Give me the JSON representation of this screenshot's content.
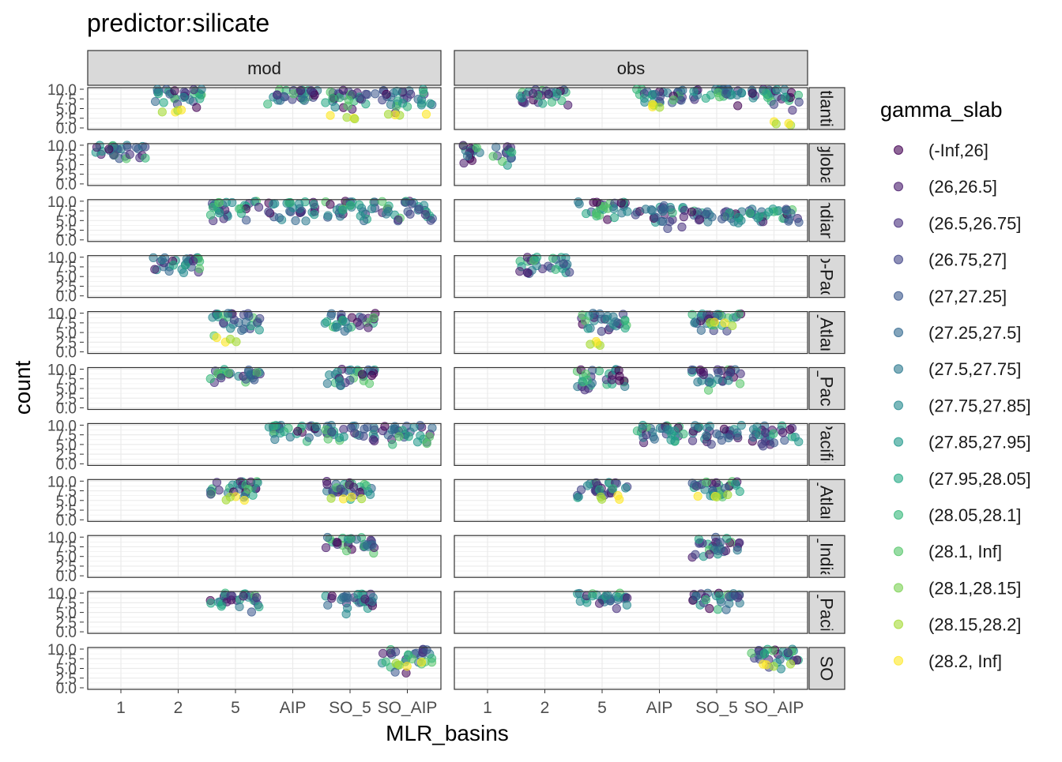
{
  "chart_data": {
    "type": "scatter",
    "title": "predictor:silicate",
    "xlabel": "MLR_basins",
    "ylabel": "count",
    "x_categories": [
      "1",
      "2",
      "5",
      "AIP",
      "SO_5",
      "SO_AIP"
    ],
    "y_ticks": [
      "0.0",
      "2.5",
      "5.0",
      "7.5",
      "10.0"
    ],
    "ylim": [
      0,
      10
    ],
    "grid": true,
    "columns": [
      "mod",
      "obs"
    ],
    "rows": [
      "tlanti",
      "globa",
      "ndian",
      "o-Pac",
      "_Atlan",
      "_Paci",
      "Pacific",
      "_Atlan",
      "_India",
      "_Pacif",
      "SO"
    ],
    "legend": {
      "title": "gamma_slab",
      "placement": "right",
      "entries": [
        {
          "label": "(-Inf,26]",
          "color": "#440154"
        },
        {
          "label": "(26,26.5]",
          "color": "#481a6c"
        },
        {
          "label": "(26.5,26.75]",
          "color": "#472f7d"
        },
        {
          "label": "(26.75,27]",
          "color": "#414487"
        },
        {
          "label": "(27,27.25]",
          "color": "#39568c"
        },
        {
          "label": "(27.25,27.5]",
          "color": "#31688e"
        },
        {
          "label": "(27.5,27.75]",
          "color": "#2a788e"
        },
        {
          "label": "(27.75,27.85]",
          "color": "#23888e"
        },
        {
          "label": "(27.85,27.95]",
          "color": "#1f988b"
        },
        {
          "label": "(27.95,28.05]",
          "color": "#22a884"
        },
        {
          "label": "(28.05,28.1]",
          "color": "#35b779"
        },
        {
          "label": "(28.1, Inf]",
          "color": "#54c568"
        },
        {
          "label": "(28.1,28.15]",
          "color": "#7ad151"
        },
        {
          "label": "(28.15,28.2]",
          "color": "#a5db36"
        },
        {
          "label": "(28.2, Inf]",
          "color": "#fde725"
        }
      ]
    },
    "panels": [
      {
        "row": 0,
        "col": "mod",
        "groups": [
          {
            "x": "2",
            "y": [
              5,
              10
            ]
          },
          {
            "x": "AIP",
            "y": [
              5,
              10
            ]
          },
          {
            "x": "SO_5",
            "y": [
              4,
              10
            ]
          },
          {
            "x": "SO_AIP",
            "y": [
              3.5,
              10
            ]
          }
        ],
        "yellow": [
          {
            "x": "2",
            "y": 4
          },
          {
            "x": "SO_5",
            "y": 3
          },
          {
            "x": "SO_AIP",
            "y": 4
          }
        ]
      },
      {
        "row": 0,
        "col": "obs",
        "groups": [
          {
            "x": "2",
            "y": [
              5,
              10
            ]
          },
          {
            "x": "AIP",
            "y": [
              5,
              10
            ]
          },
          {
            "x": "SO_5",
            "y": [
              5,
              10
            ]
          },
          {
            "x": "SO_AIP",
            "y": [
              4,
              10
            ]
          }
        ],
        "yellow": [
          {
            "x": "AIP",
            "y": 6
          },
          {
            "x": "SO_AIP",
            "y": 1
          }
        ]
      },
      {
        "row": 1,
        "col": "mod",
        "groups": [
          {
            "x": "1",
            "y": [
              5,
              10
            ]
          }
        ]
      },
      {
        "row": 1,
        "col": "obs",
        "groups": [
          {
            "x": "1",
            "y": [
              4,
              10
            ]
          }
        ]
      },
      {
        "row": 2,
        "col": "mod",
        "groups": [
          {
            "x": "5",
            "y": [
              4,
              10
            ]
          },
          {
            "x": "AIP",
            "y": [
              4,
              10
            ]
          },
          {
            "x": "SO_5",
            "y": [
              4,
              10
            ]
          },
          {
            "x": "SO_AIP",
            "y": [
              4,
              10
            ]
          }
        ]
      },
      {
        "row": 2,
        "col": "obs",
        "groups": [
          {
            "x": "5",
            "y": [
              4.5,
              10
            ]
          },
          {
            "x": "AIP",
            "y": [
              2.5,
              9
            ]
          },
          {
            "x": "SO_5",
            "y": [
              4,
              7.5
            ]
          },
          {
            "x": "SO_AIP",
            "y": [
              4,
              8
            ]
          }
        ]
      },
      {
        "row": 3,
        "col": "mod",
        "groups": [
          {
            "x": "2",
            "y": [
              5,
              10
            ]
          }
        ]
      },
      {
        "row": 3,
        "col": "obs",
        "groups": [
          {
            "x": "2",
            "y": [
              5,
              10
            ]
          }
        ]
      },
      {
        "row": 4,
        "col": "mod",
        "groups": [
          {
            "x": "5",
            "y": [
              4,
              10
            ]
          },
          {
            "x": "SO_5",
            "y": [
              5,
              10
            ]
          }
        ],
        "yellow": [
          {
            "x": "5",
            "y": 3
          }
        ]
      },
      {
        "row": 4,
        "col": "obs",
        "groups": [
          {
            "x": "5",
            "y": [
              5,
              10
            ]
          },
          {
            "x": "SO_5",
            "y": [
              5,
              10
            ]
          }
        ],
        "yellow": [
          {
            "x": "5",
            "y": 2
          },
          {
            "x": "SO_5",
            "y": 7
          }
        ]
      },
      {
        "row": 5,
        "col": "mod",
        "groups": [
          {
            "x": "5",
            "y": [
              5,
              10
            ]
          },
          {
            "x": "SO_5",
            "y": [
              5,
              10
            ]
          }
        ]
      },
      {
        "row": 5,
        "col": "obs",
        "groups": [
          {
            "x": "5",
            "y": [
              4,
              10
            ]
          },
          {
            "x": "SO_5",
            "y": [
              4,
              10
            ]
          }
        ]
      },
      {
        "row": 6,
        "col": "mod",
        "groups": [
          {
            "x": "AIP",
            "y": [
              5,
              10
            ]
          },
          {
            "x": "SO_5",
            "y": [
              4,
              10
            ]
          },
          {
            "x": "SO_AIP",
            "y": [
              4,
              10
            ]
          }
        ]
      },
      {
        "row": 6,
        "col": "obs",
        "groups": [
          {
            "x": "AIP",
            "y": [
              4,
              10
            ]
          },
          {
            "x": "SO_5",
            "y": [
              4,
              10
            ]
          },
          {
            "x": "SO_AIP",
            "y": [
              4,
              10
            ]
          }
        ]
      },
      {
        "row": 7,
        "col": "mod",
        "groups": [
          {
            "x": "5",
            "y": [
              5,
              10
            ]
          },
          {
            "x": "SO_5",
            "y": [
              5,
              10
            ]
          }
        ],
        "yellow": [
          {
            "x": "5",
            "y": 5.5
          },
          {
            "x": "SO_5",
            "y": 6
          }
        ]
      },
      {
        "row": 7,
        "col": "obs",
        "groups": [
          {
            "x": "5",
            "y": [
              5,
              10
            ]
          },
          {
            "x": "SO_5",
            "y": [
              5,
              10
            ]
          }
        ],
        "yellow": [
          {
            "x": "5",
            "y": 6
          },
          {
            "x": "SO_5",
            "y": 6
          }
        ]
      },
      {
        "row": 8,
        "col": "mod",
        "groups": [
          {
            "x": "SO_5",
            "y": [
              5,
              10
            ]
          }
        ]
      },
      {
        "row": 8,
        "col": "obs",
        "groups": [
          {
            "x": "SO_5",
            "y": [
              4,
              10
            ]
          }
        ]
      },
      {
        "row": 9,
        "col": "mod",
        "groups": [
          {
            "x": "5",
            "y": [
              3.5,
              10
            ]
          },
          {
            "x": "SO_5",
            "y": [
              4,
              10
            ]
          }
        ]
      },
      {
        "row": 9,
        "col": "obs",
        "groups": [
          {
            "x": "5",
            "y": [
              5,
              10
            ]
          },
          {
            "x": "SO_5",
            "y": [
              5,
              10
            ]
          }
        ]
      },
      {
        "row": 10,
        "col": "mod",
        "groups": [
          {
            "x": "SO_AIP",
            "y": [
              2,
              10
            ]
          }
        ],
        "yellow": [
          {
            "x": "SO_AIP",
            "y": 6
          }
        ]
      },
      {
        "row": 10,
        "col": "obs",
        "groups": [
          {
            "x": "SO_AIP",
            "y": [
              4,
              10
            ]
          }
        ],
        "yellow": [
          {
            "x": "SO_AIP",
            "y": 6
          }
        ]
      }
    ]
  }
}
